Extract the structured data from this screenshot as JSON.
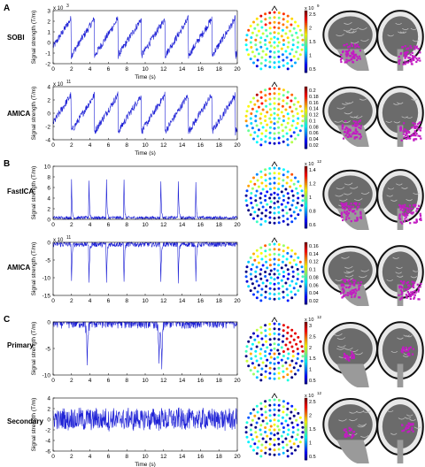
{
  "sections": [
    {
      "label": "A"
    },
    {
      "label": "B"
    },
    {
      "label": "C"
    }
  ],
  "rows": [
    {
      "label": "SOBI",
      "section": 0,
      "exponent": "x 10^3",
      "exp_base": "x 10",
      "exp_power": "3",
      "ylabel": "Signal strength (T/m)",
      "xlabel": "Time (s)",
      "yticks": [
        3,
        2,
        1,
        0,
        -1,
        -2
      ],
      "xticks": [
        0,
        2,
        4,
        6,
        8,
        10,
        12,
        14,
        16,
        18,
        20
      ],
      "colorbar_exp_base": "x 10",
      "colorbar_exp_power": "9",
      "colorbar_ticks": [
        "2.5",
        "2",
        "1.5",
        "1",
        "0.5"
      ],
      "waveform": "sawtooth"
    },
    {
      "label": "AMICA",
      "section": 0,
      "exponent": "x 10^11",
      "exp_base": "x 10",
      "exp_power": "11",
      "ylabel": "Signal strength (T/m)",
      "xlabel": "Time (s)",
      "yticks": [
        4,
        2,
        0,
        -2,
        -4
      ],
      "xticks": [
        0,
        2,
        4,
        6,
        8,
        10,
        12,
        14,
        16,
        18,
        20
      ],
      "colorbar_exp_base": "",
      "colorbar_exp_power": "",
      "colorbar_ticks": [
        "0.2",
        "0.18",
        "0.16",
        "0.14",
        "0.12",
        "0.1",
        "0.08",
        "0.06",
        "0.04",
        "0.02"
      ],
      "waveform": "sawtooth"
    },
    {
      "label": "FastICA",
      "section": 1,
      "exponent": "",
      "exp_base": "",
      "exp_power": "",
      "ylabel": "Signal strength (T/m)",
      "xlabel": "",
      "yticks": [
        10,
        8,
        6,
        4,
        2,
        0
      ],
      "xticks": [
        0,
        2,
        4,
        6,
        8,
        10,
        12,
        14,
        16,
        18,
        20
      ],
      "colorbar_exp_base": "x 10",
      "colorbar_exp_power": "12",
      "colorbar_ticks": [
        "1.4",
        "1.2",
        "1",
        "0.8",
        "0.6"
      ],
      "waveform": "spikes_up"
    },
    {
      "label": "AMICA",
      "section": 1,
      "exponent": "x 10^11",
      "exp_base": "x 10",
      "exp_power": "11",
      "ylabel": "Signal strength (T/m)",
      "xlabel": "",
      "yticks": [
        0,
        -5,
        -10,
        -15
      ],
      "xticks": [
        0,
        2,
        4,
        6,
        8,
        10,
        12,
        14,
        16,
        18,
        20
      ],
      "colorbar_exp_base": "",
      "colorbar_exp_power": "",
      "colorbar_ticks": [
        "0.16",
        "0.14",
        "0.12",
        "0.1",
        "0.08",
        "0.06",
        "0.04",
        "0.02"
      ],
      "waveform": "spikes_down"
    },
    {
      "label": "Primary",
      "section": 2,
      "exponent": "",
      "exp_base": "",
      "exp_power": "",
      "ylabel": "Signal strength (T/m)",
      "xlabel": "",
      "yticks": [
        0,
        -5,
        -10
      ],
      "xticks": [
        0,
        2,
        4,
        6,
        8,
        10,
        12,
        14,
        16,
        18,
        20
      ],
      "colorbar_exp_base": "x 10",
      "colorbar_exp_power": "12",
      "colorbar_ticks": [
        "3",
        "2.5",
        "2",
        "1.5",
        "1",
        "0.5"
      ],
      "waveform": "noise_down"
    },
    {
      "label": "Secondary",
      "section": 2,
      "exponent": "",
      "exp_base": "",
      "exp_power": "",
      "ylabel": "Signal strength (T/m)",
      "xlabel": "Time (s)",
      "yticks": [
        4,
        2,
        0,
        -2,
        -4,
        -6
      ],
      "xticks": [
        0,
        2,
        4,
        6,
        8,
        10,
        12,
        14,
        16,
        18,
        20
      ],
      "colorbar_exp_base": "x 10",
      "colorbar_exp_power": "12",
      "colorbar_ticks": [
        "2.5",
        "2",
        "1.5",
        "1",
        "0.5"
      ],
      "waveform": "noise"
    }
  ],
  "colors": {
    "trace": "#1f22d6",
    "axis": "#000000"
  }
}
